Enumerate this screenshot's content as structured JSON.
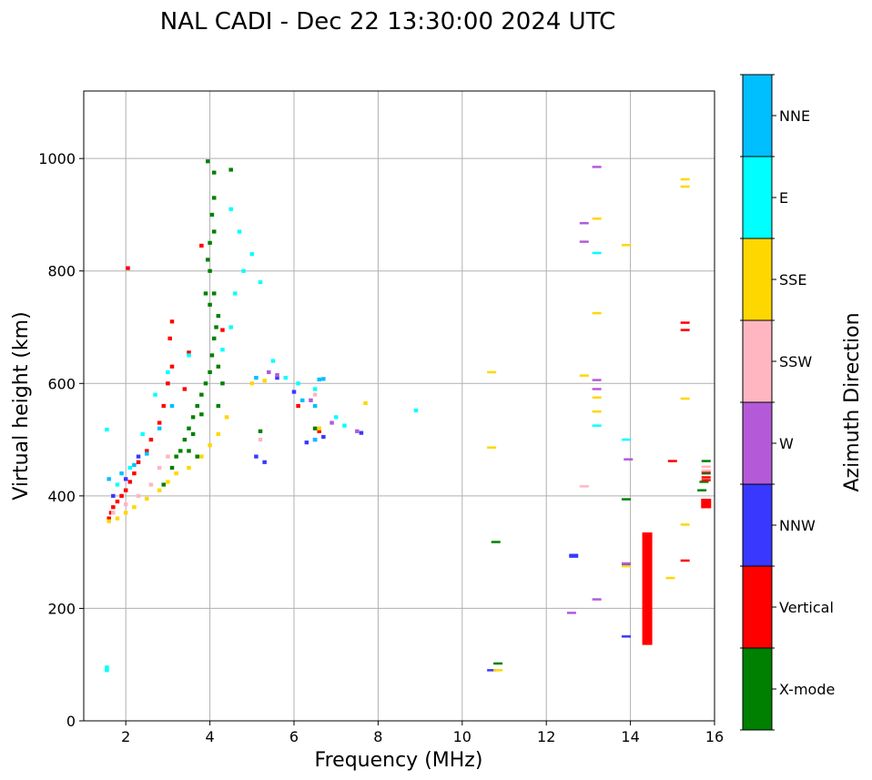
{
  "chart_data": {
    "type": "scatter",
    "title": "NAL CADI - Dec 22 13:30:00 2024 UTC",
    "xlabel": "Frequency (MHz)",
    "ylabel": "Virtual height (km)",
    "xlim": [
      1,
      16
    ],
    "ylim": [
      0,
      1120
    ],
    "xticks": [
      2,
      4,
      6,
      8,
      10,
      12,
      14,
      16
    ],
    "yticks": [
      0,
      200,
      400,
      600,
      800,
      1000
    ],
    "grid": true,
    "colorbar": {
      "title": "Azimuth Direction",
      "categories": [
        {
          "name": "X-mode",
          "color": "#008000"
        },
        {
          "name": "Vertical",
          "color": "#ff0000"
        },
        {
          "name": "NNW",
          "color": "#3838ff"
        },
        {
          "name": "W",
          "color": "#b45ad8"
        },
        {
          "name": "SSW",
          "color": "#ffb6c1"
        },
        {
          "name": "SSE",
          "color": "#ffd700"
        },
        {
          "name": "E",
          "color": "#00ffff"
        },
        {
          "name": "NNE",
          "color": "#00bfff"
        }
      ]
    },
    "series": [
      {
        "name": "X-mode",
        "points": [
          [
            2.9,
            420
          ],
          [
            3.1,
            450
          ],
          [
            3.2,
            470
          ],
          [
            3.3,
            480
          ],
          [
            3.4,
            500
          ],
          [
            3.5,
            520
          ],
          [
            3.6,
            540
          ],
          [
            3.7,
            560
          ],
          [
            3.8,
            580
          ],
          [
            3.9,
            600
          ],
          [
            4.0,
            620
          ],
          [
            4.05,
            650
          ],
          [
            4.1,
            680
          ],
          [
            4.15,
            700
          ],
          [
            4.2,
            720
          ],
          [
            4.1,
            760
          ],
          [
            4.0,
            800
          ],
          [
            3.95,
            820
          ],
          [
            4.0,
            850
          ],
          [
            4.1,
            870
          ],
          [
            4.05,
            900
          ],
          [
            4.1,
            930
          ],
          [
            4.1,
            975
          ],
          [
            3.95,
            995
          ],
          [
            4.5,
            980
          ],
          [
            3.6,
            510
          ],
          [
            3.8,
            545
          ],
          [
            4.2,
            630
          ],
          [
            4.3,
            600
          ],
          [
            3.9,
            760
          ],
          [
            4.0,
            740
          ],
          [
            3.7,
            470
          ],
          [
            3.5,
            480
          ],
          [
            4.2,
            560
          ],
          [
            5.2,
            515
          ],
          [
            6.5,
            520
          ],
          [
            10.8,
            318
          ],
          [
            10.85,
            102
          ],
          [
            13.9,
            394
          ],
          [
            15.7,
            410
          ],
          [
            15.75,
            425
          ],
          [
            15.8,
            440
          ],
          [
            15.8,
            462
          ]
        ],
        "bars": []
      },
      {
        "name": "Vertical",
        "points": [
          [
            1.6,
            360
          ],
          [
            1.65,
            370
          ],
          [
            1.7,
            380
          ],
          [
            1.8,
            390
          ],
          [
            1.9,
            400
          ],
          [
            2.0,
            410
          ],
          [
            2.1,
            425
          ],
          [
            2.2,
            440
          ],
          [
            2.3,
            460
          ],
          [
            2.5,
            480
          ],
          [
            2.6,
            500
          ],
          [
            2.8,
            530
          ],
          [
            2.9,
            560
          ],
          [
            3.0,
            600
          ],
          [
            3.1,
            630
          ],
          [
            3.05,
            680
          ],
          [
            3.1,
            710
          ],
          [
            3.5,
            655
          ],
          [
            3.4,
            590
          ],
          [
            2.05,
            805
          ],
          [
            3.8,
            845
          ],
          [
            4.3,
            695
          ],
          [
            6.1,
            560
          ],
          [
            6.6,
            515
          ],
          [
            15.0,
            462
          ],
          [
            15.3,
            708
          ],
          [
            15.3,
            695
          ],
          [
            15.3,
            285
          ],
          [
            15.8,
            428
          ],
          [
            15.8,
            433
          ],
          [
            15.8,
            443
          ]
        ],
        "bars": [
          {
            "x": 14.4,
            "y0": 135,
            "y1": 335
          },
          {
            "x": 15.8,
            "y0": 378,
            "y1": 395
          }
        ]
      },
      {
        "name": "NNW",
        "points": [
          [
            1.7,
            400
          ],
          [
            2.0,
            430
          ],
          [
            2.3,
            470
          ],
          [
            5.1,
            470
          ],
          [
            5.3,
            460
          ],
          [
            5.6,
            610
          ],
          [
            6.0,
            585
          ],
          [
            6.3,
            495
          ],
          [
            6.5,
            500
          ],
          [
            6.7,
            505
          ],
          [
            7.6,
            512
          ],
          [
            10.7,
            90
          ],
          [
            12.65,
            295
          ],
          [
            12.65,
            292
          ],
          [
            13.9,
            150
          ],
          [
            13.9,
            278
          ]
        ],
        "bars": []
      },
      {
        "name": "W",
        "points": [
          [
            5.4,
            620
          ],
          [
            5.6,
            615
          ],
          [
            6.4,
            570
          ],
          [
            6.9,
            530
          ],
          [
            7.5,
            515
          ],
          [
            12.9,
            885
          ],
          [
            12.9,
            852
          ],
          [
            13.2,
            985
          ],
          [
            13.2,
            606
          ],
          [
            13.2,
            590
          ],
          [
            12.6,
            192
          ],
          [
            13.2,
            216
          ],
          [
            13.95,
            465
          ],
          [
            13.9,
            280
          ]
        ],
        "bars": []
      },
      {
        "name": "SSW",
        "points": [
          [
            1.7,
            370
          ],
          [
            2.0,
            385
          ],
          [
            2.3,
            400
          ],
          [
            2.6,
            420
          ],
          [
            2.8,
            450
          ],
          [
            3.0,
            470
          ],
          [
            5.2,
            500
          ],
          [
            6.5,
            580
          ],
          [
            12.9,
            417
          ],
          [
            15.8,
            445
          ],
          [
            15.8,
            452
          ]
        ],
        "bars": []
      },
      {
        "name": "SSE",
        "points": [
          [
            1.6,
            355
          ],
          [
            1.8,
            360
          ],
          [
            2.0,
            370
          ],
          [
            2.2,
            380
          ],
          [
            2.5,
            395
          ],
          [
            2.8,
            410
          ],
          [
            3.0,
            425
          ],
          [
            3.2,
            440
          ],
          [
            3.5,
            450
          ],
          [
            3.8,
            470
          ],
          [
            4.0,
            490
          ],
          [
            4.2,
            510
          ],
          [
            4.4,
            540
          ],
          [
            5.0,
            600
          ],
          [
            5.3,
            605
          ],
          [
            6.6,
            520
          ],
          [
            7.7,
            565
          ],
          [
            10.7,
            620
          ],
          [
            10.7,
            486
          ],
          [
            10.85,
            90
          ],
          [
            12.9,
            614
          ],
          [
            13.2,
            893
          ],
          [
            13.2,
            725
          ],
          [
            13.2,
            575
          ],
          [
            13.2,
            550
          ],
          [
            13.9,
            846
          ],
          [
            13.9,
            275
          ],
          [
            15.3,
            963
          ],
          [
            15.3,
            950
          ],
          [
            15.3,
            573
          ],
          [
            15.3,
            349
          ],
          [
            14.95,
            254
          ]
        ],
        "bars": []
      },
      {
        "name": "E",
        "points": [
          [
            1.55,
            518
          ],
          [
            1.55,
            95
          ],
          [
            1.55,
            90
          ],
          [
            1.8,
            420
          ],
          [
            2.1,
            450
          ],
          [
            2.4,
            510
          ],
          [
            2.7,
            580
          ],
          [
            3.0,
            620
          ],
          [
            3.5,
            650
          ],
          [
            4.3,
            660
          ],
          [
            4.5,
            700
          ],
          [
            4.6,
            760
          ],
          [
            4.8,
            800
          ],
          [
            5.0,
            830
          ],
          [
            5.2,
            780
          ],
          [
            5.5,
            640
          ],
          [
            5.8,
            610
          ],
          [
            6.1,
            600
          ],
          [
            6.5,
            590
          ],
          [
            7.0,
            540
          ],
          [
            7.2,
            525
          ],
          [
            8.9,
            552
          ],
          [
            13.2,
            832
          ],
          [
            13.2,
            525
          ],
          [
            13.9,
            500
          ],
          [
            4.5,
            910
          ],
          [
            4.7,
            870
          ]
        ],
        "bars": []
      },
      {
        "name": "NNE",
        "points": [
          [
            1.6,
            430
          ],
          [
            1.9,
            440
          ],
          [
            2.2,
            455
          ],
          [
            2.5,
            475
          ],
          [
            2.8,
            520
          ],
          [
            3.1,
            560
          ],
          [
            6.2,
            570
          ],
          [
            6.5,
            560
          ],
          [
            6.6,
            607
          ],
          [
            6.7,
            608
          ],
          [
            6.5,
            500
          ],
          [
            5.1,
            610
          ]
        ],
        "bars": []
      }
    ]
  }
}
